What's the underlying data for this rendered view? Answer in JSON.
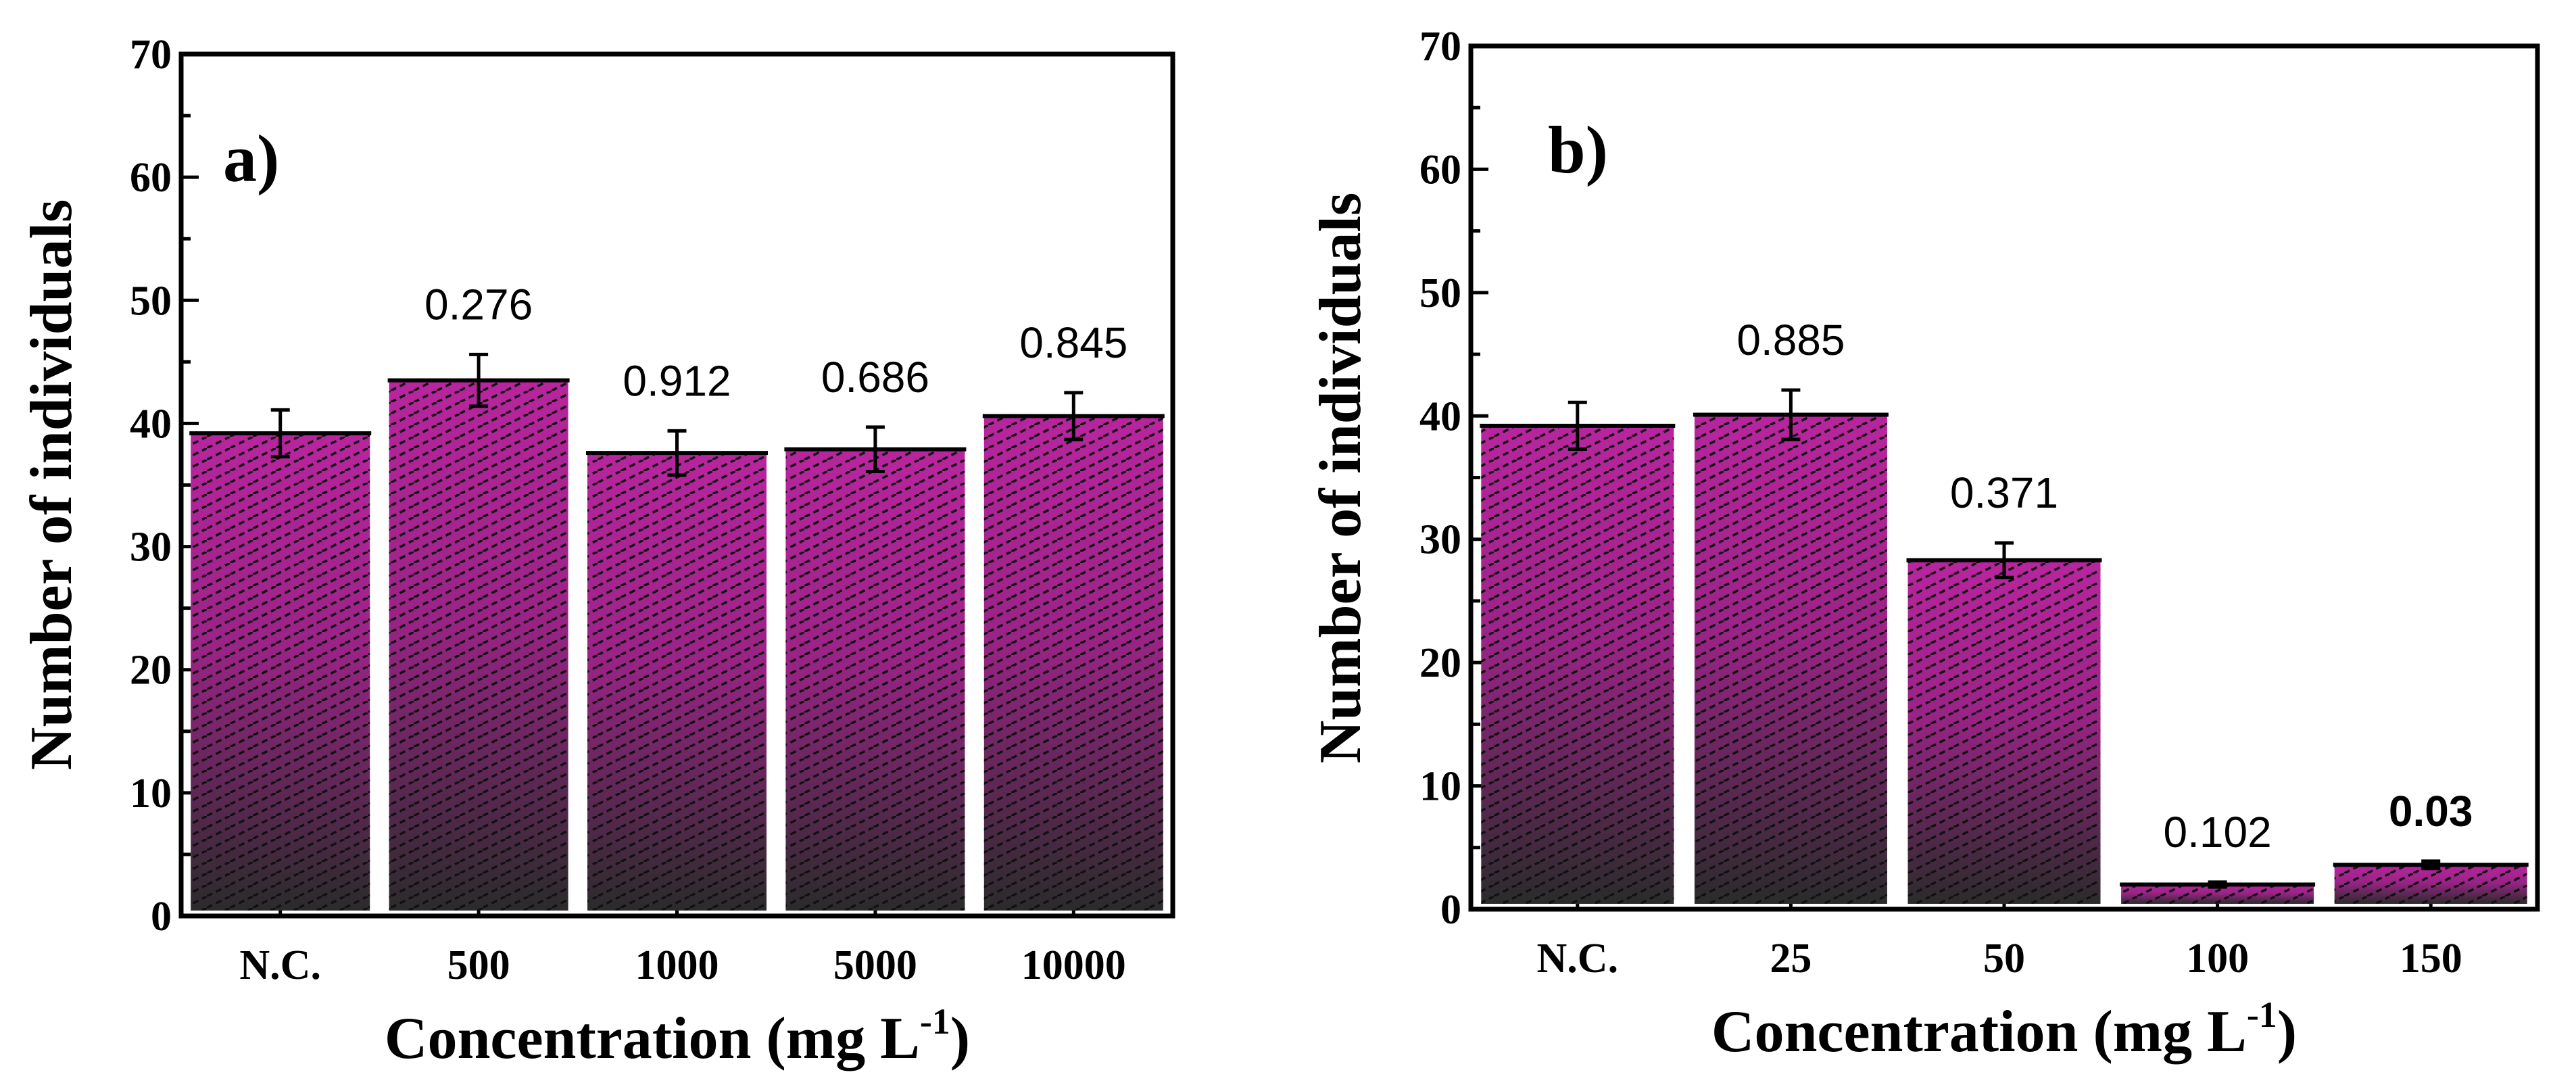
{
  "chart_data": [
    {
      "type": "bar",
      "panel_label": "a)",
      "title": "",
      "xlabel": "Concentration (mg L",
      "xlabel_sup": "-1",
      "xlabel_end": ")",
      "ylabel": "Number of individuals",
      "ylim": [
        0,
        70
      ],
      "yticks": [
        0,
        10,
        20,
        30,
        40,
        50,
        60,
        70
      ],
      "categories": [
        "N.C.",
        "500",
        "1000",
        "5000",
        "10000"
      ],
      "values": [
        39.2,
        43.5,
        37.6,
        37.9,
        40.6
      ],
      "errors": [
        1.9,
        2.1,
        1.8,
        1.8,
        1.9
      ],
      "labels": [
        "",
        "0.276",
        "0.912",
        "0.686",
        "0.845"
      ],
      "label_bold": [
        false,
        false,
        false,
        false,
        false
      ]
    },
    {
      "type": "bar",
      "panel_label": "b)",
      "title": "",
      "xlabel": "Concentration (mg L",
      "xlabel_sup": "-1",
      "xlabel_end": ")",
      "ylabel": "Number of individuals",
      "ylim": [
        0,
        70
      ],
      "yticks": [
        0,
        10,
        20,
        30,
        40,
        50,
        60,
        70
      ],
      "categories": [
        "N.C.",
        "25",
        "50",
        "100",
        "150"
      ],
      "values": [
        39.2,
        40.1,
        28.3,
        2.0,
        3.6
      ],
      "errors": [
        1.9,
        2.0,
        1.4,
        0.2,
        0.3
      ],
      "labels": [
        "",
        "0.885",
        "0.371",
        "0.102",
        "0.03"
      ],
      "label_bold": [
        false,
        false,
        false,
        false,
        true
      ]
    }
  ],
  "colors": {
    "bar_top": "#b8259e",
    "bar_bottom": "#2b2b2b",
    "hatch": "#111111",
    "axis": "#000000"
  }
}
